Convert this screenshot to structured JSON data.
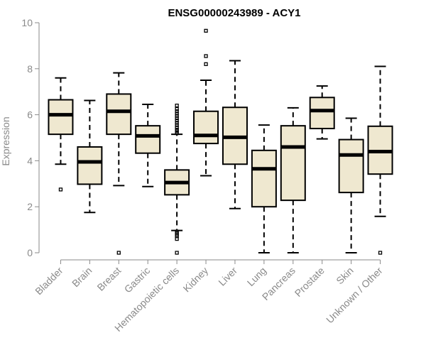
{
  "chart_data": {
    "type": "boxplot",
    "title": "ENSG00000243989 - ACY1",
    "ylabel": "Expression",
    "xlabel": "",
    "ylim": [
      0,
      10
    ],
    "yticks": [
      0,
      2,
      4,
      6,
      8,
      10
    ],
    "grid": false,
    "box_fill": "#efe8d0",
    "categories": [
      "Bladder",
      "Brain",
      "Breast",
      "Gastric",
      "Hematopoietic cells",
      "Kidney",
      "Liver",
      "Lung",
      "Pancreas",
      "Prostate",
      "Skin",
      "Unknown / Other"
    ],
    "boxes": [
      {
        "whislo": 3.85,
        "q1": 5.15,
        "med": 6.0,
        "q3": 6.65,
        "whishi": 7.6,
        "fliers": [
          2.75
        ]
      },
      {
        "whislo": 1.75,
        "q1": 2.98,
        "med": 3.95,
        "q3": 4.6,
        "whishi": 6.62,
        "fliers": []
      },
      {
        "whislo": 2.92,
        "q1": 5.15,
        "med": 6.15,
        "q3": 6.9,
        "whishi": 7.82,
        "fliers": [
          0.0
        ]
      },
      {
        "whislo": 2.88,
        "q1": 4.33,
        "med": 5.08,
        "q3": 5.52,
        "whishi": 6.45,
        "fliers": []
      },
      {
        "whislo": 0.97,
        "q1": 2.52,
        "med": 3.05,
        "q3": 3.6,
        "whishi": 5.15,
        "fliers": [
          0.0,
          0.6,
          0.72,
          0.78,
          0.85,
          0.92,
          5.2,
          5.28,
          5.35,
          5.45,
          5.55,
          5.65,
          5.75,
          5.85,
          5.95,
          6.05,
          6.15,
          6.25,
          6.4
        ]
      },
      {
        "whislo": 3.35,
        "q1": 4.75,
        "med": 5.1,
        "q3": 6.15,
        "whishi": 7.5,
        "fliers": [
          8.2,
          8.55,
          9.65
        ]
      },
      {
        "whislo": 1.92,
        "q1": 3.85,
        "med": 5.02,
        "q3": 6.32,
        "whishi": 8.35,
        "fliers": []
      },
      {
        "whislo": 0.0,
        "q1": 2.0,
        "med": 3.65,
        "q3": 4.45,
        "whishi": 5.55,
        "fliers": []
      },
      {
        "whislo": 0.0,
        "q1": 2.28,
        "med": 4.6,
        "q3": 5.52,
        "whishi": 6.3,
        "fliers": []
      },
      {
        "whislo": 4.95,
        "q1": 5.4,
        "med": 6.18,
        "q3": 6.75,
        "whishi": 7.25,
        "fliers": []
      },
      {
        "whislo": 0.0,
        "q1": 2.62,
        "med": 4.25,
        "q3": 4.92,
        "whishi": 5.85,
        "fliers": []
      },
      {
        "whislo": 1.58,
        "q1": 3.42,
        "med": 4.4,
        "q3": 5.5,
        "whishi": 8.1,
        "fliers": [
          0.0
        ]
      }
    ]
  }
}
